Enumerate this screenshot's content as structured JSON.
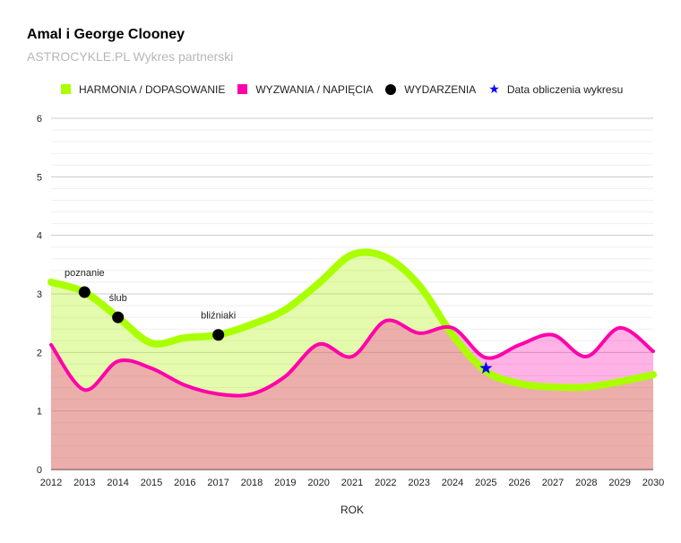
{
  "chart_data": {
    "type": "area",
    "title": "Amal i George Clooney",
    "subtitle": "ASTROCYKLE.PL Wykres partnerski",
    "xlabel": "ROK",
    "ylabel": "",
    "xlim": [
      2012,
      2030
    ],
    "ylim": [
      0,
      6
    ],
    "y_ticks": [
      0,
      1,
      2,
      3,
      4,
      5,
      6
    ],
    "x_ticks": [
      2012,
      2013,
      2014,
      2015,
      2016,
      2017,
      2018,
      2019,
      2020,
      2021,
      2022,
      2023,
      2024,
      2025,
      2026,
      2027,
      2028,
      2029,
      2030
    ],
    "grid": true,
    "legend_position": "top",
    "x": [
      2012,
      2013,
      2014,
      2015,
      2016,
      2017,
      2018,
      2019,
      2020,
      2021,
      2022,
      2023,
      2024,
      2025,
      2026,
      2027,
      2028,
      2029,
      2030
    ],
    "series": [
      {
        "name": "HARMONIA / DOPASOWANIE",
        "color": "#aaff00",
        "values": [
          3.2,
          3.03,
          2.6,
          2.16,
          2.25,
          2.3,
          2.48,
          2.73,
          3.18,
          3.67,
          3.63,
          3.15,
          2.3,
          1.68,
          1.47,
          1.41,
          1.41,
          1.5,
          1.62
        ]
      },
      {
        "name": "WYZWANIA / NAPIĘCIA",
        "color": "#ff00aa",
        "values": [
          2.13,
          1.36,
          1.85,
          1.73,
          1.44,
          1.29,
          1.29,
          1.59,
          2.14,
          1.93,
          2.54,
          2.33,
          2.42,
          1.91,
          2.13,
          2.3,
          1.93,
          2.42,
          2.02
        ]
      }
    ],
    "events_label": "WYDARZENIA",
    "events": [
      {
        "x": 2013,
        "y": 3.03,
        "label": "poznanie"
      },
      {
        "x": 2014,
        "y": 2.6,
        "label": "ślub"
      },
      {
        "x": 2017,
        "y": 2.3,
        "label": "bliźniaki"
      }
    ],
    "calc_date_label": "Data obliczenia wykresu",
    "calc_date": {
      "x": 2025,
      "y": 1.73,
      "color": "#0000ff"
    }
  }
}
